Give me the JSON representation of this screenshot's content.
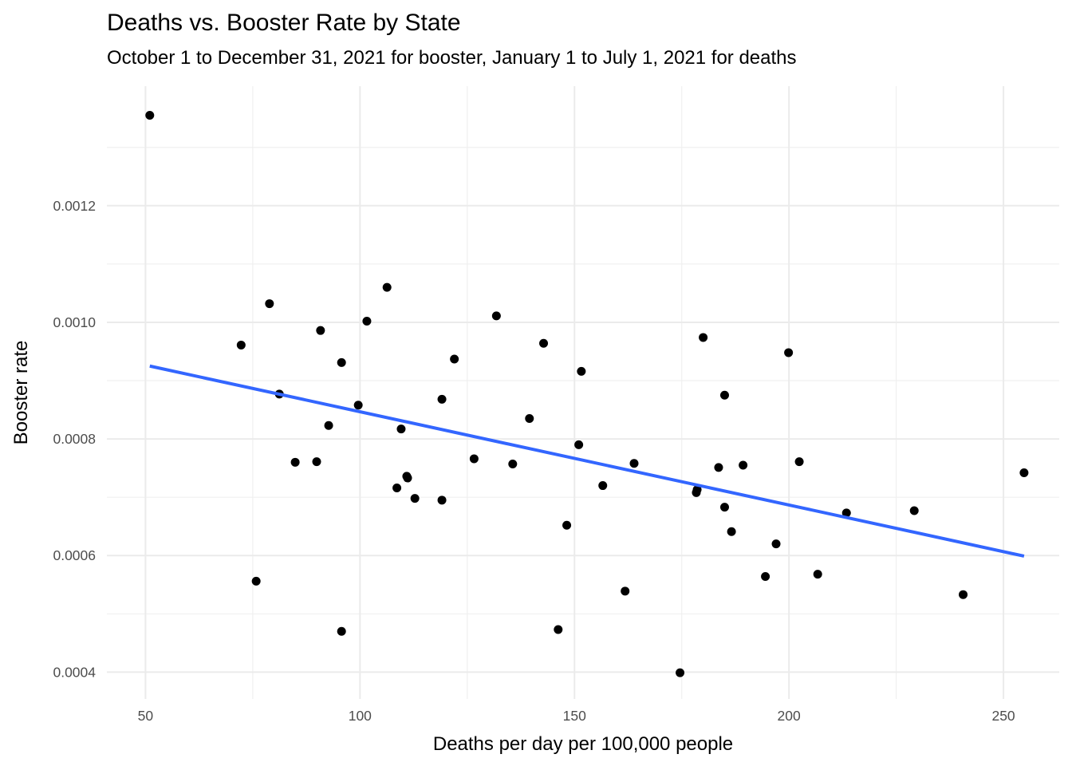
{
  "chart_data": {
    "type": "scatter",
    "title": "Deaths vs. Booster Rate by State",
    "subtitle": "October 1 to December 31, 2021 for booster, January 1 to July 1, 2021 for deaths",
    "xlabel": "Deaths per day per 100,000 people",
    "ylabel": "Booster rate",
    "xlim": [
      41,
      263
    ],
    "ylim": [
      0.000354,
      0.001405
    ],
    "x_ticks": [
      50,
      100,
      150,
      200,
      250
    ],
    "x_tick_labels": [
      "50",
      "100",
      "150",
      "200",
      "250"
    ],
    "y_ticks": [
      0.0004,
      0.0006,
      0.0008,
      0.001,
      0.0012
    ],
    "y_tick_labels": [
      "0.0004",
      "0.0006",
      "0.0008",
      "0.0010",
      "0.0012"
    ],
    "grid": true,
    "legend": "none",
    "point_color": "#000000",
    "points": [
      [
        51.0,
        0.001355
      ],
      [
        72.3,
        0.000961
      ],
      [
        75.8,
        0.000556
      ],
      [
        78.9,
        0.001032
      ],
      [
        81.2,
        0.000877
      ],
      [
        84.9,
        0.00076
      ],
      [
        89.9,
        0.000761
      ],
      [
        90.8,
        0.000986
      ],
      [
        92.7,
        0.000823
      ],
      [
        95.7,
        0.000931
      ],
      [
        95.7,
        0.00047
      ],
      [
        99.6,
        0.000858
      ],
      [
        101.6,
        0.001002
      ],
      [
        106.3,
        0.00106
      ],
      [
        108.6,
        0.000716
      ],
      [
        109.6,
        0.000817
      ],
      [
        110.9,
        0.000736
      ],
      [
        111.1,
        0.000733
      ],
      [
        112.8,
        0.000698
      ],
      [
        119.1,
        0.000868
      ],
      [
        119.1,
        0.000695
      ],
      [
        122.0,
        0.000937
      ],
      [
        126.6,
        0.000766
      ],
      [
        131.8,
        0.001011
      ],
      [
        135.6,
        0.000757
      ],
      [
        139.5,
        0.000835
      ],
      [
        142.8,
        0.000964
      ],
      [
        146.2,
        0.000473
      ],
      [
        148.2,
        0.000652
      ],
      [
        151.0,
        0.00079
      ],
      [
        151.6,
        0.000916
      ],
      [
        156.6,
        0.00072
      ],
      [
        161.8,
        0.000539
      ],
      [
        163.9,
        0.000758
      ],
      [
        174.6,
        0.000399
      ],
      [
        178.4,
        0.000708
      ],
      [
        178.6,
        0.000713
      ],
      [
        180.0,
        0.000974
      ],
      [
        183.6,
        0.000751
      ],
      [
        185.0,
        0.000683
      ],
      [
        185.0,
        0.000875
      ],
      [
        186.6,
        0.000641
      ],
      [
        189.3,
        0.000755
      ],
      [
        194.5,
        0.000564
      ],
      [
        197.0,
        0.00062
      ],
      [
        199.9,
        0.000948
      ],
      [
        202.4,
        0.000761
      ],
      [
        206.7,
        0.000568
      ],
      [
        213.4,
        0.000673
      ],
      [
        229.2,
        0.000677
      ],
      [
        240.6,
        0.000533
      ],
      [
        254.8,
        0.000742
      ]
    ],
    "trend_line": {
      "type": "linear",
      "color": "#3366ff",
      "x": [
        51.0,
        254.8
      ],
      "y": [
        0.000925,
        0.000599
      ]
    }
  }
}
